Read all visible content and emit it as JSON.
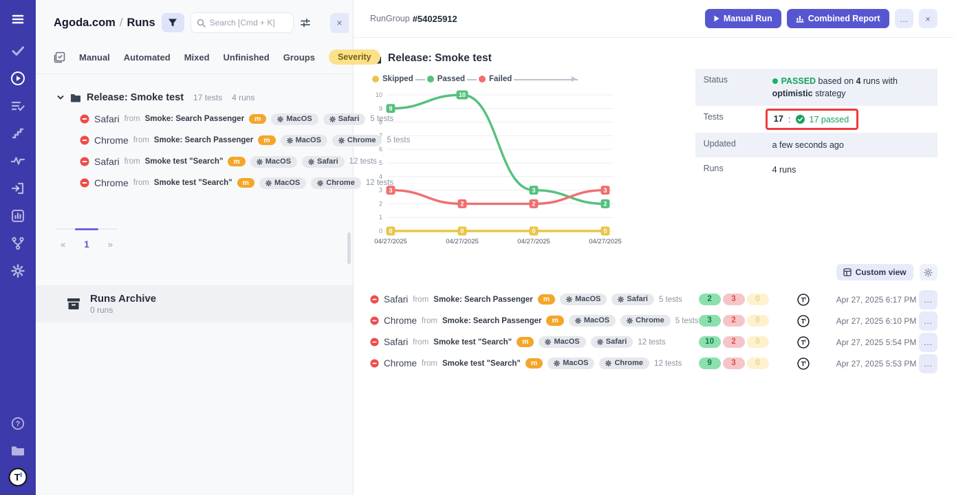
{
  "app": {
    "accent": "#5756d1",
    "sidebar_bg": "#3d3aab"
  },
  "sidebar": {
    "icons": [
      "menu-icon",
      "tests-check-icon",
      "runs-play-icon",
      "test-plans-icon",
      "steps-icon",
      "pulse-analytics-icon",
      "import-icon",
      "reports-chart-icon",
      "branches-icon",
      "settings-gear-icon"
    ],
    "footer_icons": [
      "help-icon",
      "projects-folder-icon",
      "profile-logo-icon"
    ]
  },
  "left_panel": {
    "project": "Agoda.com",
    "separator": "/",
    "page": "Runs",
    "search_placeholder": "Search [Cmd + K]",
    "tabs": [
      "Manual",
      "Automated",
      "Mixed",
      "Unfinished",
      "Groups"
    ],
    "severity_tab": "Severity",
    "group": {
      "name": "Release: Smoke test",
      "tests_count": "17 tests",
      "runs_count": "4 runs"
    },
    "pagination": {
      "prev": "«",
      "current": "1",
      "next": "»"
    },
    "archive": {
      "title": "Runs Archive",
      "subtitle": "0 runs"
    }
  },
  "header": {
    "rungroup_label": "RunGroup",
    "rungroup_id": "#54025912",
    "manual_run": "Manual Run",
    "combined_report": "Combined Report",
    "more": "…",
    "close": "×"
  },
  "main": {
    "title": "Release: Smoke test",
    "details": {
      "status_label": "Status",
      "status_value": "PASSED",
      "status_mid1": " based on ",
      "status_runs": "4",
      "status_mid2": " runs with ",
      "status_strategy": "optimistic",
      "status_tail": " strategy",
      "tests_label": "Tests",
      "tests_total": "17",
      "tests_colon": ":",
      "tests_passed": "17 passed",
      "updated_label": "Updated",
      "updated_value": "a few seconds ago",
      "runs_label": "Runs",
      "runs_value": "4 runs"
    },
    "custom_view": "Custom view"
  },
  "runs": {
    "rows": [
      {
        "browser": "Safari",
        "from_label": "from",
        "source": "Smoke: Search Passenger",
        "flag": "m",
        "env_os": "MacOS",
        "env_browser": "Safari",
        "tests": "5 tests",
        "passed": "2",
        "failed": "3",
        "skipped": "0",
        "date": "Apr 27, 2025 6:17 PM"
      },
      {
        "browser": "Chrome",
        "from_label": "from",
        "source": "Smoke: Search Passenger",
        "flag": "m",
        "env_os": "MacOS",
        "env_browser": "Chrome",
        "tests": "5 tests",
        "passed": "3",
        "failed": "2",
        "skipped": "0",
        "date": "Apr 27, 2025 6:10 PM"
      },
      {
        "browser": "Safari",
        "from_label": "from",
        "source": "Smoke test \"Search\"",
        "flag": "m",
        "env_os": "MacOS",
        "env_browser": "Safari",
        "tests": "12 tests",
        "passed": "10",
        "failed": "2",
        "skipped": "0",
        "date": "Apr 27, 2025 5:54 PM"
      },
      {
        "browser": "Chrome",
        "from_label": "from",
        "source": "Smoke test \"Search\"",
        "flag": "m",
        "env_os": "MacOS",
        "env_browser": "Chrome",
        "tests": "12 tests",
        "passed": "9",
        "failed": "3",
        "skipped": "0",
        "date": "Apr 27, 2025 5:53 PM"
      }
    ]
  },
  "chart_data": {
    "type": "line",
    "title": "",
    "x_labels": [
      "04/27/2025",
      "04/27/2025",
      "04/27/2025",
      "04/27/2025"
    ],
    "series": [
      {
        "name": "Skipped",
        "color": "#e9c64a",
        "values": [
          0,
          0,
          0,
          0
        ]
      },
      {
        "name": "Passed",
        "color": "#55c07e",
        "values": [
          9,
          10,
          3,
          2
        ]
      },
      {
        "name": "Failed",
        "color": "#ef6f6f",
        "values": [
          3,
          2,
          2,
          3
        ]
      }
    ],
    "legend": [
      "Skipped",
      "Passed",
      "Failed"
    ],
    "legend_position": "top",
    "ylim": [
      0,
      10
    ],
    "yticks": [
      0,
      1,
      2,
      3,
      4,
      5,
      6,
      7,
      8,
      9,
      10
    ],
    "grid": true
  }
}
